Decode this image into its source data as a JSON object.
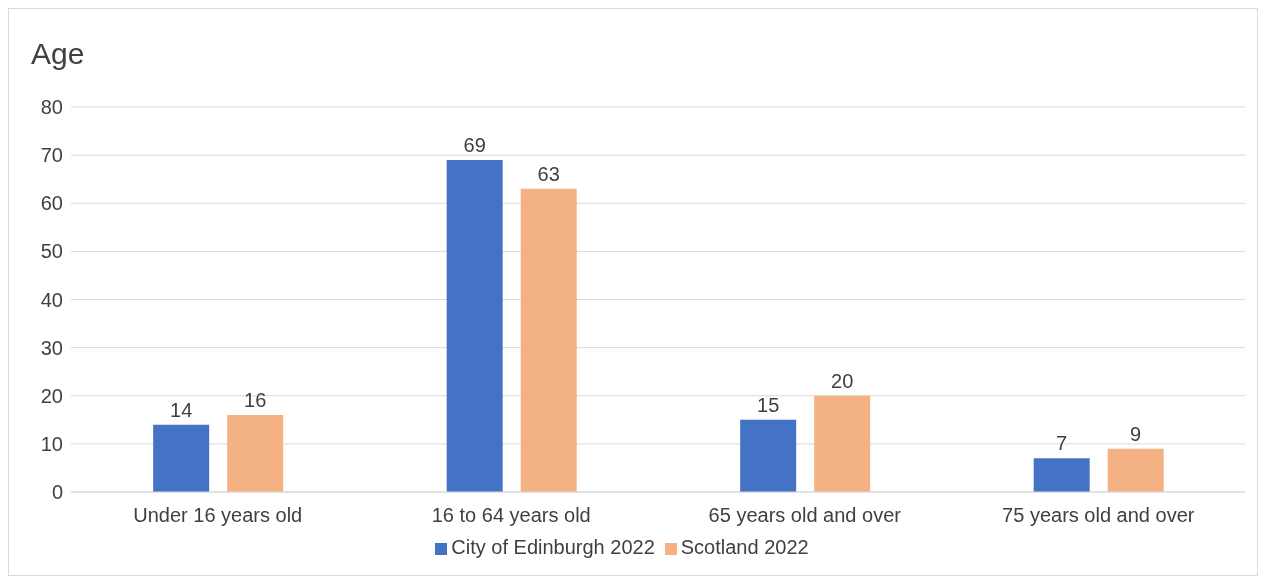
{
  "chart_data": {
    "type": "bar",
    "title": "Age",
    "categories": [
      "Under 16 years old",
      "16 to 64 years old",
      "65 years old and over",
      "75 years old and over"
    ],
    "series": [
      {
        "name": "City of Edinburgh 2022",
        "color": "#4472c4",
        "values": [
          14,
          69,
          15,
          7
        ]
      },
      {
        "name": "Scotland 2022",
        "color": "#f4b183",
        "values": [
          16,
          63,
          20,
          9
        ]
      }
    ],
    "ylim": [
      0,
      80
    ],
    "yticks": [
      0,
      10,
      20,
      30,
      40,
      50,
      60,
      70,
      80
    ],
    "grid": "y",
    "legend": "bottom",
    "data_labels": true
  }
}
